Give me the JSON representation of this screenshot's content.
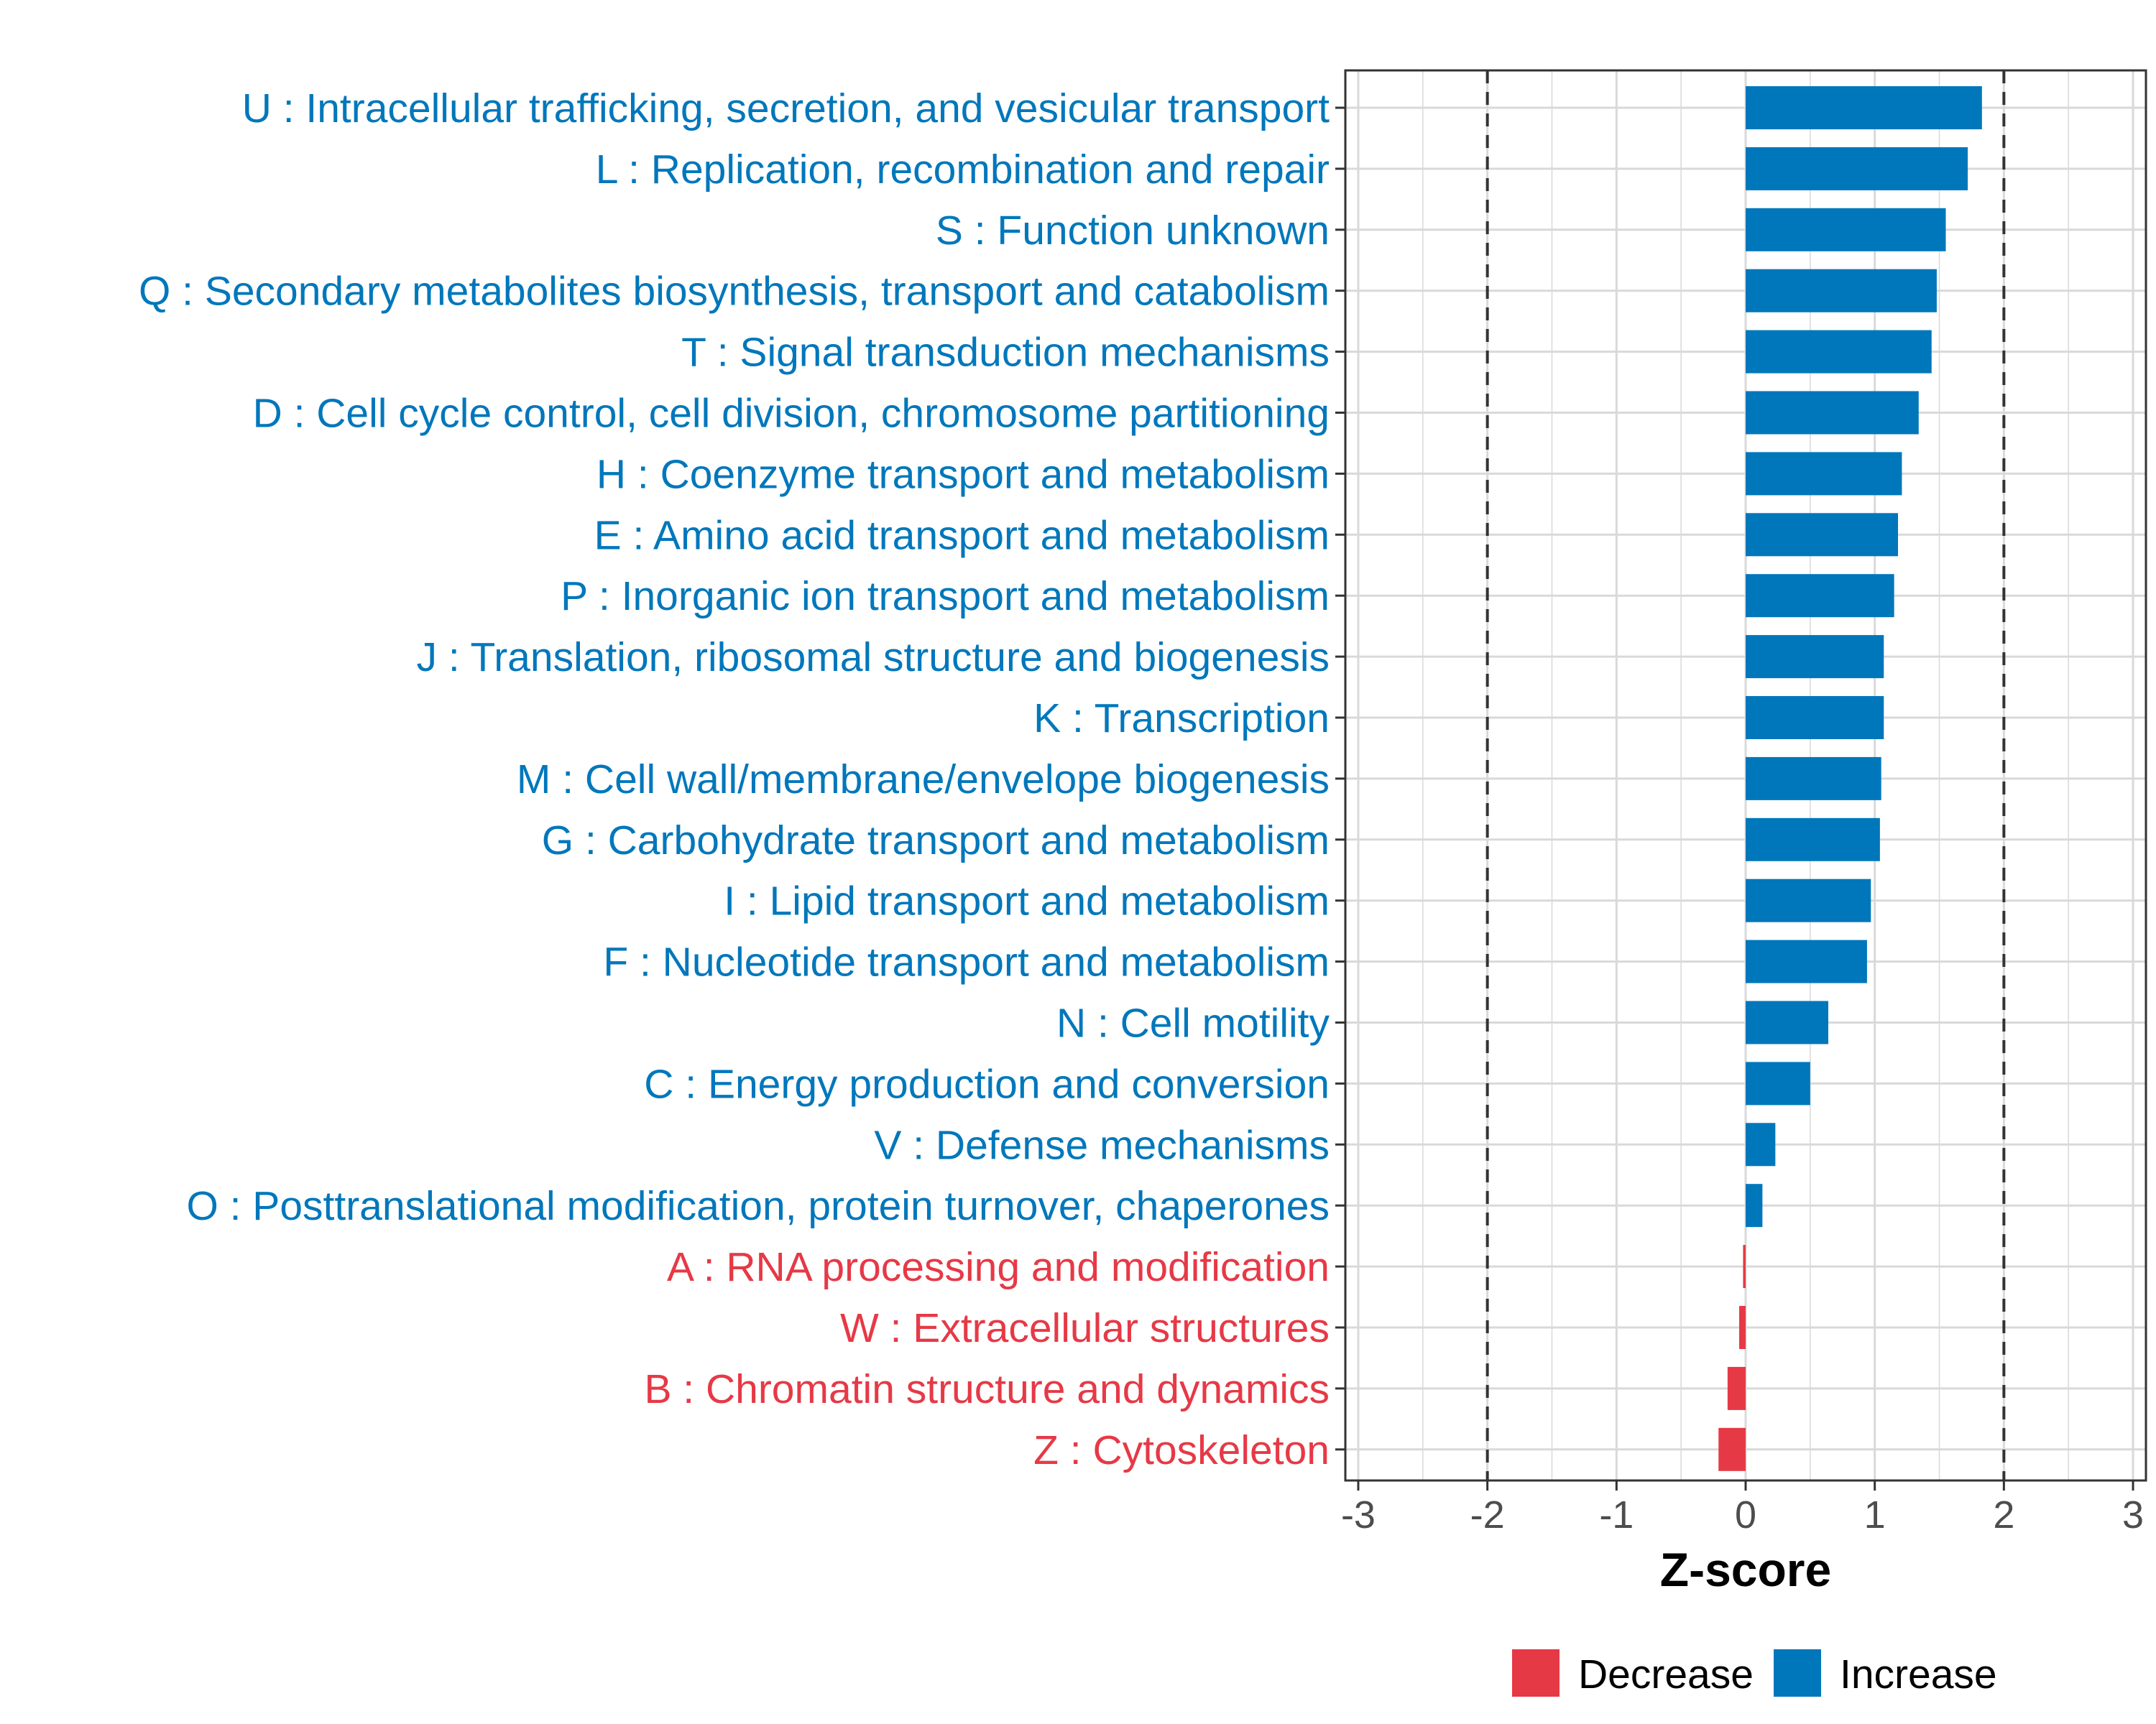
{
  "colors": {
    "increase": "#0077BB",
    "decrease": "#E63946",
    "grid": "#D9D9D9",
    "axis": "#333333",
    "tick_text": "#4D4D4D"
  },
  "chart_data": {
    "type": "bar",
    "orientation": "horizontal",
    "xlabel": "Z-score",
    "ylabel": "",
    "xlim": [
      -3.1,
      3.1
    ],
    "xticks": [
      "-3",
      "-2",
      "-1",
      "0",
      "1",
      "2",
      "3"
    ],
    "reference_lines": [
      -2,
      2
    ],
    "grid": true,
    "legend": {
      "position": "bottom",
      "items": [
        {
          "label": "Decrease",
          "color_key": "decrease"
        },
        {
          "label": "Increase",
          "color_key": "increase"
        }
      ]
    },
    "categories": [
      "U : Intracellular trafficking, secretion, and vesicular transport",
      "L : Replication, recombination and repair",
      "S : Function unknown",
      "Q : Secondary metabolites biosynthesis, transport and catabolism",
      "T : Signal transduction mechanisms",
      "D : Cell cycle control, cell division, chromosome partitioning",
      "H : Coenzyme transport and metabolism",
      "E : Amino acid transport and metabolism",
      "P : Inorganic ion transport and metabolism",
      "J : Translation, ribosomal structure and biogenesis",
      "K : Transcription",
      "M : Cell wall/membrane/envelope biogenesis",
      "G : Carbohydrate transport and metabolism",
      "I : Lipid transport and metabolism",
      "F : Nucleotide transport and metabolism",
      "N : Cell motility",
      "C : Energy production and conversion",
      "V : Defense mechanisms",
      "O : Posttranslational modification, protein turnover, chaperones",
      "A : RNA processing and modification",
      "W : Extracellular structures",
      "B : Chromatin structure and dynamics",
      "Z : Cytoskeleton"
    ],
    "values": [
      1.83,
      1.72,
      1.55,
      1.48,
      1.44,
      1.34,
      1.21,
      1.18,
      1.15,
      1.07,
      1.07,
      1.05,
      1.04,
      0.97,
      0.94,
      0.64,
      0.5,
      0.23,
      0.13,
      -0.02,
      -0.05,
      -0.14,
      -0.21
    ],
    "direction": [
      "Increase",
      "Increase",
      "Increase",
      "Increase",
      "Increase",
      "Increase",
      "Increase",
      "Increase",
      "Increase",
      "Increase",
      "Increase",
      "Increase",
      "Increase",
      "Increase",
      "Increase",
      "Increase",
      "Increase",
      "Increase",
      "Increase",
      "Decrease",
      "Decrease",
      "Decrease",
      "Decrease"
    ]
  }
}
